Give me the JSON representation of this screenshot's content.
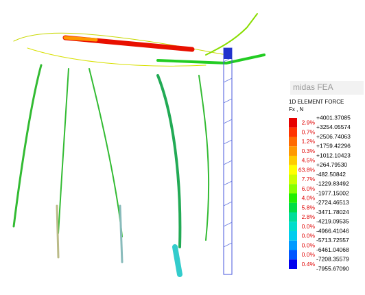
{
  "logo": "midas FEA",
  "legend": {
    "title": "1D ELEMENT FORCE",
    "unit": "Fx , N",
    "bands": [
      {
        "percent": "2.9%",
        "color": "#e60000"
      },
      {
        "percent": "0.7%",
        "color": "#ff3300"
      },
      {
        "percent": "1.2%",
        "color": "#ff6a00"
      },
      {
        "percent": "0.3%",
        "color": "#ff9900"
      },
      {
        "percent": "4.5%",
        "color": "#ffcc00"
      },
      {
        "percent": "63.8%",
        "color": "#ffff00"
      },
      {
        "percent": "7.7%",
        "color": "#ccff00"
      },
      {
        "percent": "6.0%",
        "color": "#88ff00"
      },
      {
        "percent": "4.0%",
        "color": "#22ee00"
      },
      {
        "percent": "5.8%",
        "color": "#00dd44"
      },
      {
        "percent": "2.8%",
        "color": "#00dd99"
      },
      {
        "percent": "0.0%",
        "color": "#00ddcc"
      },
      {
        "percent": "0.0%",
        "color": "#00ccee"
      },
      {
        "percent": "0.0%",
        "color": "#0099ff"
      },
      {
        "percent": "0.0%",
        "color": "#0055ff"
      },
      {
        "percent": "0.4%",
        "color": "#0000ee"
      }
    ],
    "values": [
      "+4001.37085",
      "+3254.05574",
      "+2506.74063",
      "+1759.42296",
      "+1012.10423",
      "+264.79530",
      "-482.50842",
      "-1229.83492",
      "-1977.15002",
      "-2724.46513",
      "-3471.78024",
      "-4219.09535",
      "-4966.41046",
      "-5713.72557",
      "-6461.04068",
      "-7208.35579",
      "-7955.67090"
    ]
  }
}
